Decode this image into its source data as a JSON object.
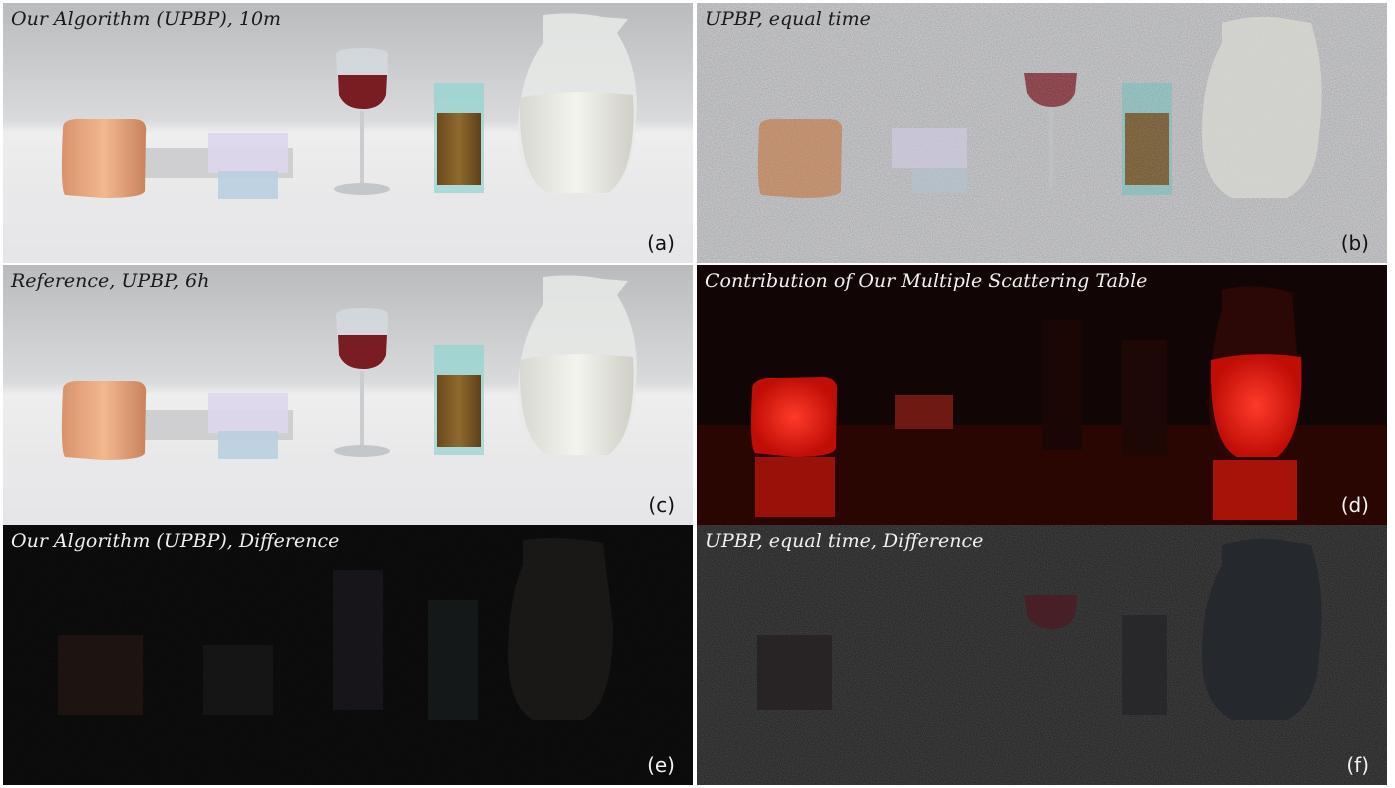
{
  "panels": [
    {
      "id": "a",
      "title": "Our Algorithm (UPBP), 10m",
      "label": "(a)"
    },
    {
      "id": "b",
      "title": "UPBP, equal time",
      "label": "(b)"
    },
    {
      "id": "c",
      "title": "Reference, UPBP, 6h",
      "label": "(c)"
    },
    {
      "id": "d",
      "title": "Contribution of Our Multiple Scattering Table",
      "label": "(d)"
    },
    {
      "id": "e",
      "title": "Our Algorithm (UPBP), Difference",
      "label": "(e)"
    },
    {
      "id": "f",
      "title": "UPBP, equal time, Difference",
      "label": "(f)"
    }
  ]
}
